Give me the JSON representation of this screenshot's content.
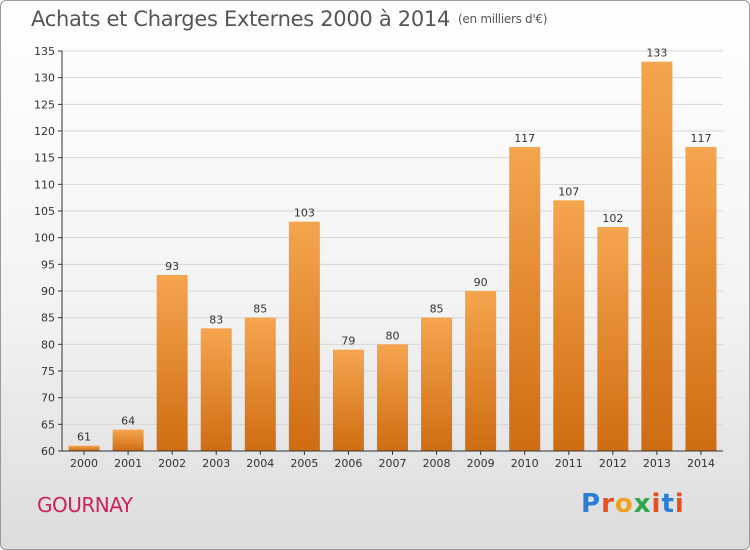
{
  "header": {
    "title": "Achats et Charges Externes 2000 à 2014",
    "subtitle": "(en milliers d'€)"
  },
  "footer": {
    "city": "GOURNAY",
    "logo": "Proxiti",
    "logo_colors": [
      "#2a7fd4",
      "#e8501e",
      "#f0a020",
      "#2aa84a",
      "#e8501e",
      "#2a7fd4",
      "#e8501e"
    ]
  },
  "colors": {
    "bar_light": "#f5a54e",
    "bar_dark": "#cf6c12",
    "text": "#555555",
    "axis": "#333333"
  },
  "chart_data": {
    "type": "bar",
    "title": "Achats et Charges Externes 2000 à 2014",
    "subtitle": "(en milliers d'€)",
    "categories": [
      "2000",
      "2001",
      "2002",
      "2003",
      "2004",
      "2005",
      "2006",
      "2007",
      "2008",
      "2009",
      "2010",
      "2011",
      "2012",
      "2013",
      "2014"
    ],
    "values": [
      61,
      64,
      93,
      83,
      85,
      103,
      79,
      80,
      85,
      90,
      117,
      107,
      102,
      133,
      117
    ],
    "ylim": [
      60,
      135
    ],
    "yticks": [
      60,
      65,
      70,
      75,
      80,
      85,
      90,
      95,
      100,
      105,
      110,
      115,
      120,
      125,
      130,
      135
    ],
    "grid": true,
    "legend": "none",
    "data_labels": true
  }
}
